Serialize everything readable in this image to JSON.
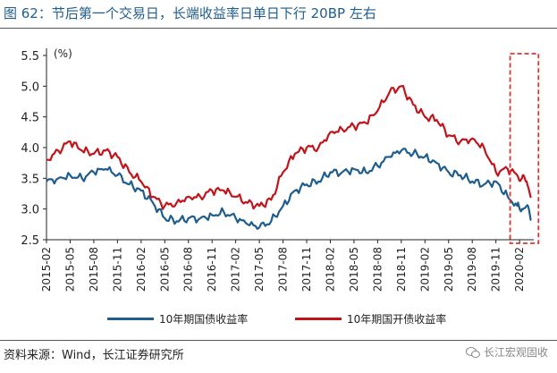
{
  "title": "图 62：节后第一个交易日，长端收益率日单日下行 20BP 左右",
  "source": "资料来源：Wind，长江证券研究所",
  "watermark": "长江宏观固收",
  "colors": {
    "series1": "#1f5d8c",
    "series2": "#c0151b",
    "highlight": "#e0342f",
    "axis": "#222222"
  },
  "chart_data": {
    "type": "line",
    "ylabel": "(%)",
    "ylim": [
      2.5,
      5.5
    ],
    "y_ticks": [
      "2.5",
      "3.0",
      "3.5",
      "4.0",
      "4.5",
      "5.0",
      "5.5"
    ],
    "x_ticks": [
      "2015-02",
      "2015-05",
      "2015-08",
      "2015-11",
      "2016-02",
      "2016-05",
      "2016-08",
      "2016-11",
      "2017-02",
      "2017-05",
      "2017-08",
      "2017-11",
      "2018-02",
      "2018-05",
      "2018-08",
      "2018-11",
      "2019-02",
      "2019-05",
      "2019-08",
      "2019-11",
      "2020-02"
    ],
    "highlight": {
      "from": "2019-12",
      "to": "2020-02"
    },
    "series": [
      {
        "name": "10年期国债收益率",
        "x": [
          0,
          1,
          2,
          3,
          4,
          5,
          6,
          7,
          8,
          9,
          10,
          11,
          12,
          13,
          14,
          15,
          16,
          17,
          18,
          19,
          20,
          21,
          22,
          23,
          24,
          25,
          26,
          27,
          28,
          29,
          30,
          31,
          32,
          33,
          34,
          35,
          36,
          37,
          38,
          39,
          39.8,
          40.2,
          40.6,
          41.0
        ],
        "values": [
          3.45,
          3.5,
          3.55,
          3.5,
          3.6,
          3.65,
          3.55,
          3.4,
          3.3,
          3.1,
          2.85,
          2.8,
          2.85,
          2.85,
          2.9,
          2.95,
          2.85,
          2.75,
          2.7,
          2.8,
          3.05,
          3.3,
          3.4,
          3.45,
          3.6,
          3.6,
          3.65,
          3.6,
          3.7,
          3.85,
          3.95,
          3.9,
          3.85,
          3.75,
          3.6,
          3.55,
          3.45,
          3.4,
          3.45,
          3.2,
          3.05,
          3.0,
          3.05,
          2.82
        ]
      },
      {
        "name": "10年期国开债收益率",
        "x": [
          0,
          1,
          2,
          3,
          4,
          5,
          6,
          7,
          8,
          9,
          10,
          11,
          12,
          13,
          14,
          15,
          16,
          17,
          18,
          19,
          20,
          21,
          22,
          23,
          24,
          25,
          26,
          27,
          28,
          29,
          30,
          31,
          32,
          33,
          34,
          35,
          36,
          37,
          38,
          39,
          39.8,
          40.2,
          40.6,
          41.0
        ],
        "values": [
          3.8,
          3.95,
          4.1,
          3.95,
          3.9,
          3.95,
          3.85,
          3.6,
          3.45,
          3.2,
          3.05,
          3.1,
          3.2,
          3.2,
          3.3,
          3.3,
          3.2,
          3.1,
          3.05,
          3.15,
          3.6,
          3.9,
          4.0,
          4.0,
          4.25,
          4.3,
          4.35,
          4.4,
          4.6,
          4.9,
          5.0,
          4.7,
          4.5,
          4.45,
          4.2,
          4.1,
          4.15,
          4.0,
          3.6,
          3.65,
          3.55,
          3.5,
          3.45,
          3.2
        ]
      }
    ]
  }
}
